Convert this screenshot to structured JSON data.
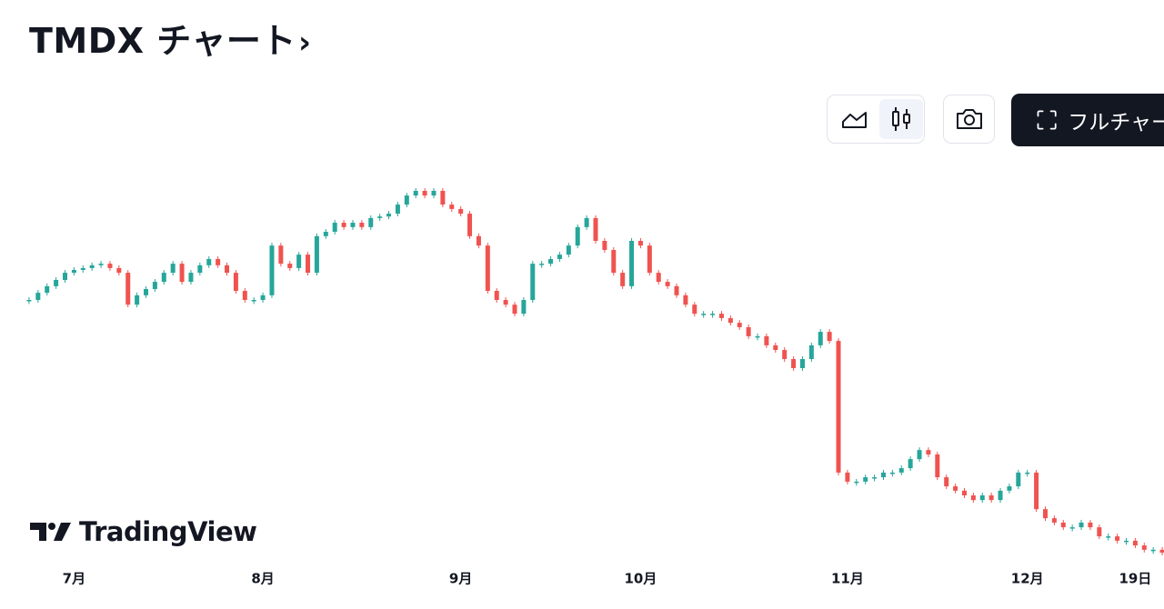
{
  "header": {
    "title": "TMDX チャート"
  },
  "toolbar": {
    "full_chart": "フルチャート"
  },
  "logo": "TradingView",
  "chart_data": {
    "type": "candlestick",
    "series": [
      {
        "up_color": "#26a69a",
        "down_color": "#ef5350",
        "values": [
          139.3,
          141.6,
          143.7,
          145.7,
          148.0,
          148.9,
          149.5,
          150.4,
          150.9,
          149.5,
          148.0,
          137.8,
          140.8,
          142.8,
          145.1,
          148.0,
          150.9,
          145.1,
          148.0,
          150.4,
          152.4,
          150.4,
          148.0,
          142.2,
          139.3,
          139.3,
          140.8,
          156.7,
          150.9,
          149.5,
          153.8,
          148.0,
          159.7,
          161.1,
          164.0,
          162.6,
          164.0,
          162.6,
          165.5,
          166.0,
          166.9,
          169.8,
          172.7,
          174.2,
          172.7,
          174.2,
          169.8,
          168.4,
          166.9,
          159.7,
          156.7,
          142.2,
          139.3,
          137.8,
          134.9,
          139.3,
          150.9,
          150.9,
          152.4,
          153.8,
          156.7,
          162.6,
          165.5,
          158.2,
          155.3,
          148.0,
          143.7,
          158.2,
          156.7,
          148.0,
          145.1,
          143.7,
          140.8,
          137.8,
          134.9,
          134.9,
          134.9,
          133.5,
          132.0,
          130.6,
          127.7,
          127.7,
          124.8,
          123.3,
          120.4,
          117.5,
          120.4,
          124.8,
          129.1,
          126.2,
          84.1,
          81.2,
          81.2,
          82.6,
          82.6,
          84.1,
          84.1,
          85.5,
          88.4,
          91.3,
          89.9,
          82.6,
          79.7,
          78.3,
          76.8,
          75.3,
          76.8,
          75.3,
          78.3,
          79.7,
          84.1,
          84.1,
          72.4,
          69.5,
          68.1,
          66.6,
          66.6,
          68.1,
          66.6,
          63.7,
          63.7,
          62.3,
          62.3,
          60.8,
          59.4,
          59.4,
          58.5
        ]
      }
    ],
    "xlim": [
      -0.5,
      126.5
    ],
    "xticks": [
      {
        "value": 5,
        "label": "7月"
      },
      {
        "value": 26,
        "label": "8月"
      },
      {
        "value": 48,
        "label": "9月"
      },
      {
        "value": 68,
        "label": "10月"
      },
      {
        "value": 91,
        "label": "11月"
      },
      {
        "value": 111,
        "label": "12月"
      },
      {
        "value": 123,
        "label": "19日"
      }
    ],
    "ylim": [
      55,
      180
    ]
  }
}
